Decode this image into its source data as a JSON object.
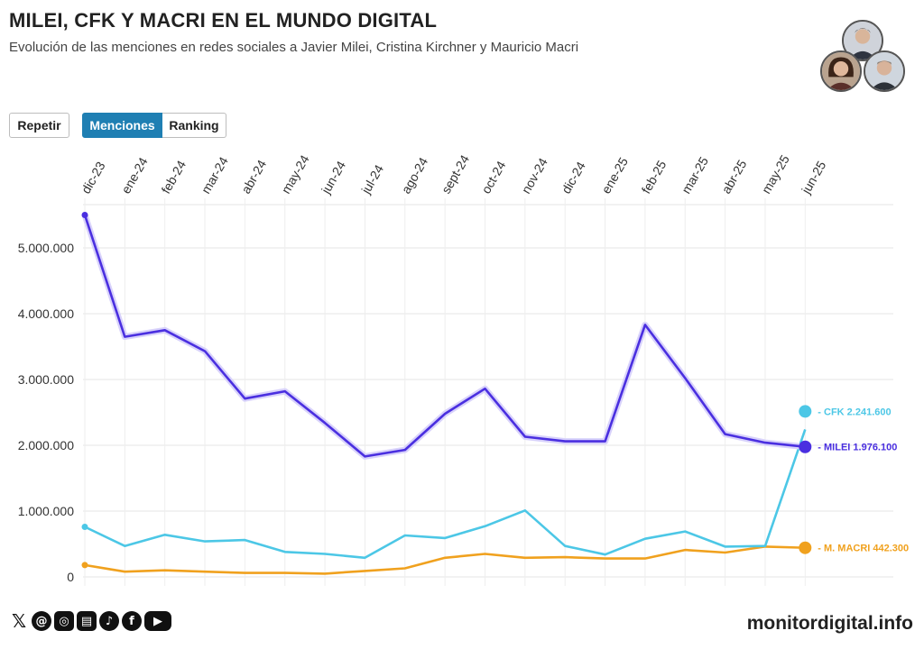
{
  "header": {
    "title": "MILEI, CFK Y MACRI EN EL MUNDO DIGITAL",
    "subtitle": "Evolución de las menciones en redes sociales a Javier Milei, Cristina Kirchner y Mauricio Macri"
  },
  "controls": {
    "replay_label": "Repetir",
    "mentions_label": "Menciones",
    "ranking_label": "Ranking"
  },
  "avatars": [
    {
      "name": "milei-avatar"
    },
    {
      "name": "cfk-avatar"
    },
    {
      "name": "macri-avatar"
    }
  ],
  "chart_data": {
    "type": "line",
    "title": "MILEI, CFK Y MACRI EN EL MUNDO DIGITAL",
    "subtitle": "Evolución de las menciones en redes sociales a Javier Milei, Cristina Kirchner y Mauricio Macri",
    "xlabel": "",
    "ylabel": "",
    "categories": [
      "dic-23",
      "ene-24",
      "feb-24",
      "mar-24",
      "abr-24",
      "may-24",
      "jun-24",
      "jul-24",
      "ago-24",
      "sept-24",
      "oct-24",
      "nov-24",
      "dic-24",
      "ene-25",
      "feb-25",
      "mar-25",
      "abr-25",
      "may-25",
      "jun-25"
    ],
    "ylim": [
      0,
      5500000
    ],
    "yticks": [
      0,
      1000000,
      2000000,
      3000000,
      4000000,
      5000000
    ],
    "ytick_labels": [
      "0",
      "1.000.000",
      "2.000.000",
      "3.000.000",
      "4.000.000",
      "5.000.000"
    ],
    "grid": true,
    "series": [
      {
        "name": "MILEI",
        "color": "#4a2fe0",
        "label": "- MILEI 1.976.100",
        "values": [
          5500000,
          3650000,
          3750000,
          3430000,
          2710000,
          2820000,
          2340000,
          1830000,
          1930000,
          2480000,
          2860000,
          2130000,
          2060000,
          2060000,
          3830000,
          3020000,
          2170000,
          2040000,
          1976100
        ]
      },
      {
        "name": "CFK",
        "color": "#4cc7e6",
        "label": "- CFK 2.241.600",
        "values": [
          760000,
          470000,
          640000,
          540000,
          560000,
          380000,
          350000,
          290000,
          630000,
          590000,
          770000,
          1010000,
          470000,
          340000,
          580000,
          690000,
          460000,
          470000,
          2241600
        ]
      },
      {
        "name": "M. MACRI",
        "color": "#f0a11e",
        "label": "- M. MACRI 442.300",
        "values": [
          180000,
          80000,
          100000,
          80000,
          60000,
          60000,
          50000,
          90000,
          130000,
          290000,
          350000,
          290000,
          300000,
          280000,
          280000,
          410000,
          370000,
          460000,
          442300
        ]
      }
    ]
  },
  "footer": {
    "social_icons": [
      "x-icon",
      "threads-icon",
      "instagram-icon",
      "news-icon",
      "tiktok-icon",
      "facebook-icon",
      "youtube-icon"
    ],
    "brand": "monitordigital.info"
  }
}
